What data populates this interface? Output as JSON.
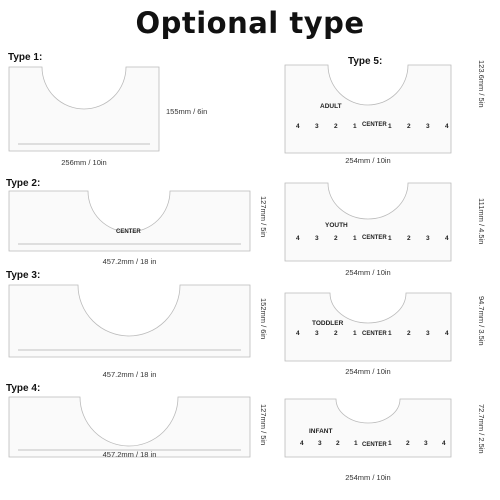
{
  "title": "Optional type",
  "types": [
    {
      "label": "Type 1:",
      "width_dim": "256mm / 10in",
      "height_dim": "155mm / 6in"
    },
    {
      "label": "Type 2:",
      "width_dim": "457.2mm / 18 in",
      "height_dim": "127mm / 5in",
      "center": "CENTER"
    },
    {
      "label": "Type 3:",
      "width_dim": "457.2mm / 18 in",
      "height_dim": "152mm / 6in"
    },
    {
      "label": "Type 4:",
      "width_dim": "457.2mm / 18 in",
      "height_dim": "127mm / 5in"
    },
    {
      "label": "Type 5:",
      "width_dim": "254mm / 10in",
      "height_dim": "123.6mm / 5in",
      "size": "ADULT",
      "center": "CENTER"
    },
    {
      "width_dim": "254mm / 10in",
      "height_dim": "111mm / 4.5in",
      "size": "YOUTH",
      "center": "CENTER"
    },
    {
      "width_dim": "254mm / 10in",
      "height_dim": "94.7mm / 3.5in",
      "size": "TODDLER",
      "center": "CENTER"
    },
    {
      "width_dim": "254mm / 10in",
      "height_dim": "72.7mm / 2.5in",
      "size": "INFANT",
      "center": "CENTER"
    }
  ],
  "scale_numbers": [
    "4",
    "3",
    "2",
    "1",
    "1",
    "2",
    "3",
    "4"
  ],
  "side_numbers": [
    "4",
    "3",
    "2"
  ]
}
